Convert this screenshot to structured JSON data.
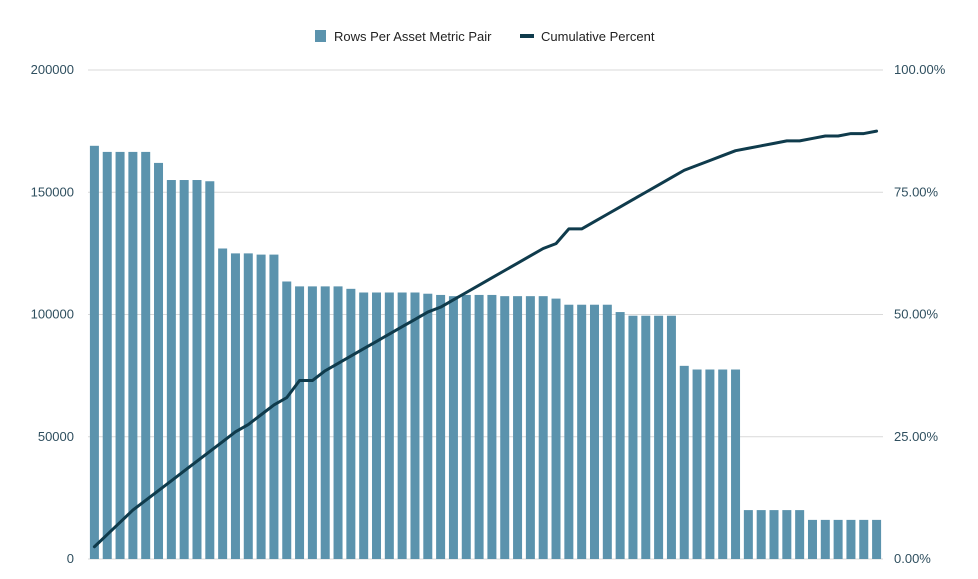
{
  "chart_data": {
    "type": "bar",
    "legend_position": "top",
    "grid": true,
    "colors": {
      "bars": "#5b93ad",
      "line": "#0f3b4c",
      "grid": "#d9d9d9",
      "text": "#2f4f5f"
    },
    "series": [
      {
        "name": "Rows Per Asset Metric Pair",
        "type": "bar",
        "axis": "left",
        "values": [
          169000,
          166500,
          166500,
          166500,
          166500,
          162000,
          155000,
          155000,
          155000,
          154500,
          127000,
          125000,
          125000,
          124500,
          124500,
          113500,
          111500,
          111500,
          111500,
          111500,
          110500,
          109000,
          109000,
          109000,
          109000,
          109000,
          108500,
          108000,
          107500,
          108000,
          108000,
          108000,
          107500,
          107500,
          107500,
          107500,
          106500,
          104000,
          104000,
          104000,
          104000,
          101000,
          99500,
          99500,
          99500,
          99500,
          79000,
          77500,
          77500,
          77500,
          77500,
          20000,
          20000,
          20000,
          20000,
          20000,
          16000,
          16000,
          16000,
          16000,
          16000,
          16000
        ]
      },
      {
        "name": "Cumulative Percent",
        "type": "line",
        "axis": "right",
        "values": [
          2.5,
          5.0,
          7.5,
          10.0,
          12.0,
          14.0,
          16.0,
          18.0,
          20.0,
          22.0,
          24.0,
          26.0,
          27.5,
          29.5,
          31.5,
          33.0,
          36.5,
          36.5,
          38.5,
          40.0,
          41.5,
          43.0,
          44.5,
          46.0,
          47.5,
          49.0,
          50.5,
          51.5,
          53.0,
          54.5,
          56.0,
          57.5,
          59.0,
          60.5,
          62.0,
          63.5,
          64.5,
          67.5,
          67.5,
          69.0,
          70.5,
          72.0,
          73.5,
          75.0,
          76.5,
          78.0,
          79.5,
          80.5,
          81.5,
          82.5,
          83.5,
          84.0,
          84.5,
          85.0,
          85.5,
          85.5,
          86.0,
          86.5,
          86.5,
          87.0,
          87.0,
          87.5
        ]
      }
    ],
    "y_left": {
      "min": 0,
      "max": 200000,
      "ticks": [
        "0",
        "50000",
        "100000",
        "150000",
        "200000"
      ]
    },
    "y_right": {
      "min": 0,
      "max": 100,
      "ticks": [
        "0.00%",
        "25.00%",
        "50.00%",
        "75.00%",
        "100.00%"
      ]
    }
  }
}
